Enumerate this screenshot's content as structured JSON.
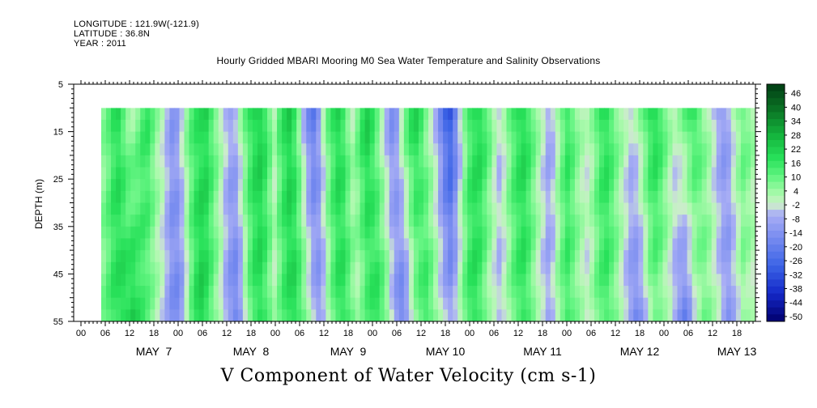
{
  "header": {
    "longitude": "LONGITUDE : 121.9W(-121.9)",
    "latitude": "LATITUDE : 36.8N",
    "year": "YEAR : 2011"
  },
  "chart_data": {
    "type": "heatmap",
    "title": "Hourly Gridded MBARI Mooring M0 Sea Water Temperature and Salinity Observations",
    "xlabel": "V Component of Water Velocity (cm s-1)",
    "ylabel": "DEPTH (m)",
    "ylim": [
      55,
      5
    ],
    "y_ticks": [
      5,
      15,
      25,
      35,
      45,
      55
    ],
    "x_hour_ticks": [
      "00",
      "06",
      "12",
      "18",
      "00",
      "06",
      "12",
      "18",
      "00",
      "06",
      "12",
      "18",
      "00",
      "06",
      "12",
      "18",
      "00",
      "06",
      "12",
      "18",
      "00",
      "06",
      "12",
      "18",
      "00",
      "06",
      "12",
      "18"
    ],
    "x_day_labels": [
      "MAY  7",
      "MAY  8",
      "MAY  9",
      "MAY 10",
      "MAY 11",
      "MAY 12",
      "MAY 13"
    ],
    "colorbar": {
      "levels": [
        "46",
        "40",
        "34",
        "28",
        "22",
        "16",
        "10",
        "4",
        "-2",
        "-8",
        "-14",
        "-20",
        "-26",
        "-32",
        "-38",
        "-44",
        "-50"
      ],
      "range": [
        -50,
        52
      ]
    },
    "data_extent": {
      "depth": [
        10,
        55
      ],
      "time": "May 7 ~05h to May 13 end"
    },
    "columns_v_top": [
      8,
      12,
      18,
      20,
      14,
      8,
      6,
      10,
      16,
      18,
      12,
      6,
      2,
      -4,
      -10,
      -8,
      0,
      8,
      14,
      18,
      20,
      22,
      16,
      10,
      4,
      -2,
      -6,
      -4,
      4,
      12,
      18,
      22,
      24,
      20,
      12,
      4,
      14,
      20,
      24,
      18,
      8,
      -4,
      -14,
      -18,
      -10,
      2,
      12,
      18,
      22,
      18,
      10,
      4,
      12,
      20,
      24,
      18,
      10,
      2,
      -6,
      -12,
      -8,
      4,
      14,
      20,
      22,
      16,
      8,
      2,
      -4,
      -14,
      -24,
      -28,
      -18,
      -4,
      8,
      16,
      20,
      22,
      18,
      12,
      4,
      -2,
      2,
      10,
      16,
      20,
      22,
      18,
      12,
      6,
      0,
      -6,
      -4,
      4,
      12,
      18,
      14,
      8,
      4,
      2,
      6,
      12,
      18,
      20,
      16,
      10,
      6,
      2,
      -2,
      2,
      8,
      14,
      20,
      22,
      18,
      12,
      6,
      2,
      6,
      12,
      16,
      18,
      14,
      8,
      4,
      -2,
      -8,
      -10,
      -6,
      2,
      8,
      12,
      10,
      6
    ],
    "columns_v_bottom": [
      10,
      14,
      18,
      20,
      22,
      22,
      24,
      20,
      16,
      12,
      8,
      4,
      0,
      -6,
      -12,
      -14,
      -10,
      0,
      12,
      20,
      24,
      20,
      14,
      8,
      2,
      -6,
      -12,
      -16,
      -10,
      2,
      12,
      18,
      20,
      16,
      10,
      4,
      10,
      16,
      20,
      22,
      18,
      12,
      4,
      -4,
      -10,
      -6,
      4,
      12,
      18,
      20,
      16,
      10,
      4,
      8,
      14,
      18,
      20,
      16,
      10,
      0,
      -10,
      -16,
      -12,
      -2,
      8,
      14,
      18,
      14,
      8,
      2,
      -4,
      -8,
      -4,
      4,
      12,
      18,
      20,
      16,
      10,
      4,
      0,
      -4,
      0,
      6,
      12,
      16,
      18,
      14,
      8,
      2,
      -2,
      -6,
      -2,
      6,
      12,
      16,
      12,
      8,
      4,
      0,
      4,
      10,
      14,
      16,
      12,
      8,
      2,
      -4,
      -10,
      -14,
      -10,
      -2,
      6,
      10,
      8,
      4,
      0,
      -6,
      -12,
      -16,
      -10,
      0,
      6,
      10,
      8,
      4,
      0,
      -6,
      -10,
      -6,
      0,
      6,
      4,
      2
    ]
  }
}
